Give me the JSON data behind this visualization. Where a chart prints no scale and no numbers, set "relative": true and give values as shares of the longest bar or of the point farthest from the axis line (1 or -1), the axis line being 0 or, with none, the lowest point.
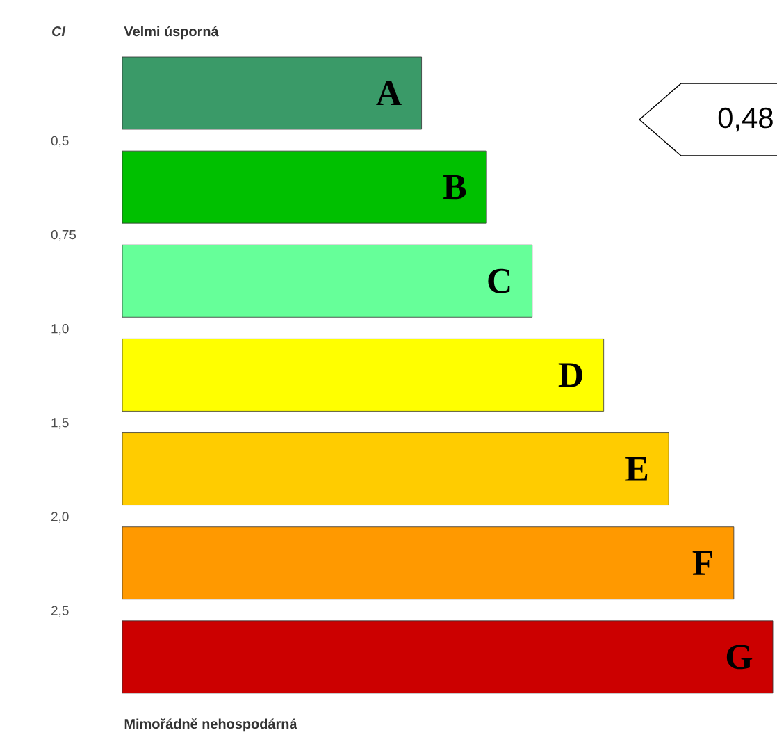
{
  "chart_data": {
    "type": "bar",
    "orientation": "horizontal",
    "relative": true,
    "title": "Velmi úsporná",
    "ylabel": "CI",
    "categories": [
      "A",
      "B",
      "C",
      "D",
      "E",
      "F",
      "G"
    ],
    "values": [
      0.46,
      0.56,
      0.63,
      0.74,
      0.84,
      0.94,
      1.0
    ],
    "colors": [
      "#3a9a68",
      "#00c000",
      "#66ff99",
      "#ffff00",
      "#ffcc00",
      "#ff9900",
      "#cc0000"
    ],
    "annotations": [
      "0,5",
      "0,75",
      "1,0",
      "1,5",
      "2,0",
      "2,5",
      "Mimořádně nehospodárná",
      "0,48"
    ]
  }
}
